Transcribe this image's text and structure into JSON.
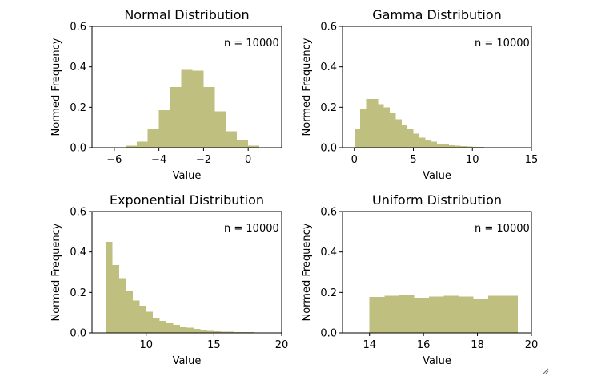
{
  "chart_data": [
    {
      "type": "bar",
      "title": "Normal Distribution",
      "xlabel": "Value",
      "ylabel": "Normed Frequency",
      "annotation": "n = 10000",
      "xlim": [
        -7,
        1.5
      ],
      "ylim": [
        0,
        0.6
      ],
      "xticks": [
        -6,
        -4,
        -2,
        0
      ],
      "xtick_labels": [
        "−6",
        "−4",
        "−2",
        "0"
      ],
      "yticks": [
        0.0,
        0.2,
        0.4,
        0.6
      ],
      "ytick_labels": [
        "0.0",
        "0.2",
        "0.4",
        "0.6"
      ],
      "bin_edges": [
        -5.5,
        -5.0,
        -4.5,
        -4.0,
        -3.5,
        -3.0,
        -2.5,
        -2.0,
        -1.5,
        -1.0,
        -0.5,
        0.0,
        0.5
      ],
      "values": [
        0.01,
        0.03,
        0.09,
        0.185,
        0.3,
        0.385,
        0.38,
        0.3,
        0.18,
        0.08,
        0.04,
        0.01
      ],
      "color": "#bfbf7f"
    },
    {
      "type": "bar",
      "title": "Gamma Distribution",
      "xlabel": "Value",
      "ylabel": "Normed Frequency",
      "annotation": "n = 10000",
      "xlim": [
        -1,
        15
      ],
      "ylim": [
        0,
        0.6
      ],
      "xticks": [
        0,
        5,
        10,
        15
      ],
      "xtick_labels": [
        "0",
        "5",
        "10",
        "15"
      ],
      "yticks": [
        0.0,
        0.2,
        0.4,
        0.6
      ],
      "ytick_labels": [
        "0.0",
        "0.2",
        "0.4",
        "0.6"
      ],
      "bin_edges": [
        0.0,
        0.5,
        1.0,
        1.5,
        2.0,
        2.5,
        3.0,
        3.5,
        4.0,
        4.5,
        5.0,
        5.5,
        6.0,
        6.5,
        7.0,
        7.5,
        8.0,
        8.5,
        9.0,
        9.5,
        10.0,
        10.5,
        11.0,
        11.5,
        12.0
      ],
      "values": [
        0.09,
        0.19,
        0.24,
        0.24,
        0.215,
        0.2,
        0.17,
        0.14,
        0.115,
        0.09,
        0.07,
        0.05,
        0.04,
        0.03,
        0.02,
        0.015,
        0.012,
        0.01,
        0.007,
        0.005,
        0.004,
        0.003,
        0.002,
        0.001
      ],
      "color": "#bfbf7f"
    },
    {
      "type": "bar",
      "title": "Exponential Distribution",
      "xlabel": "Value",
      "ylabel": "Normed Frequency",
      "annotation": "n = 10000",
      "xlim": [
        6,
        20
      ],
      "ylim": [
        0,
        0.6
      ],
      "xticks": [
        10,
        15,
        20
      ],
      "xtick_labels": [
        "10",
        "15",
        "20"
      ],
      "yticks": [
        0.0,
        0.2,
        0.4,
        0.6
      ],
      "ytick_labels": [
        "0.0",
        "0.2",
        "0.4",
        "0.6"
      ],
      "bin_edges": [
        7.0,
        7.5,
        8.0,
        8.5,
        9.0,
        9.5,
        10.0,
        10.5,
        11.0,
        11.5,
        12.0,
        12.5,
        13.0,
        13.5,
        14.0,
        14.5,
        15.0,
        15.5,
        16.0,
        16.5,
        17.0,
        17.5,
        18.0,
        18.5,
        19.0,
        19.5
      ],
      "values": [
        0.45,
        0.335,
        0.27,
        0.205,
        0.16,
        0.135,
        0.105,
        0.075,
        0.06,
        0.05,
        0.04,
        0.03,
        0.025,
        0.02,
        0.013,
        0.01,
        0.008,
        0.006,
        0.005,
        0.004,
        0.003,
        0.003,
        0.002,
        0.002,
        0.001
      ],
      "color": "#bfbf7f"
    },
    {
      "type": "bar",
      "title": "Uniform Distribution",
      "xlabel": "Value",
      "ylabel": "Normed Frequency",
      "annotation": "n = 10000",
      "xlim": [
        13,
        20
      ],
      "ylim": [
        0,
        0.6
      ],
      "xticks": [
        14,
        16,
        18,
        20
      ],
      "xtick_labels": [
        "14",
        "16",
        "18",
        "20"
      ],
      "yticks": [
        0.0,
        0.2,
        0.4,
        0.6
      ],
      "ytick_labels": [
        "0.0",
        "0.2",
        "0.4",
        "0.6"
      ],
      "bin_edges": [
        14.0,
        14.55,
        15.1,
        15.65,
        16.2,
        16.75,
        17.3,
        17.85,
        18.4,
        18.95,
        19.5
      ],
      "values": [
        0.177,
        0.183,
        0.188,
        0.173,
        0.18,
        0.184,
        0.18,
        0.168,
        0.183,
        0.183
      ],
      "color": "#bfbf7f"
    }
  ]
}
